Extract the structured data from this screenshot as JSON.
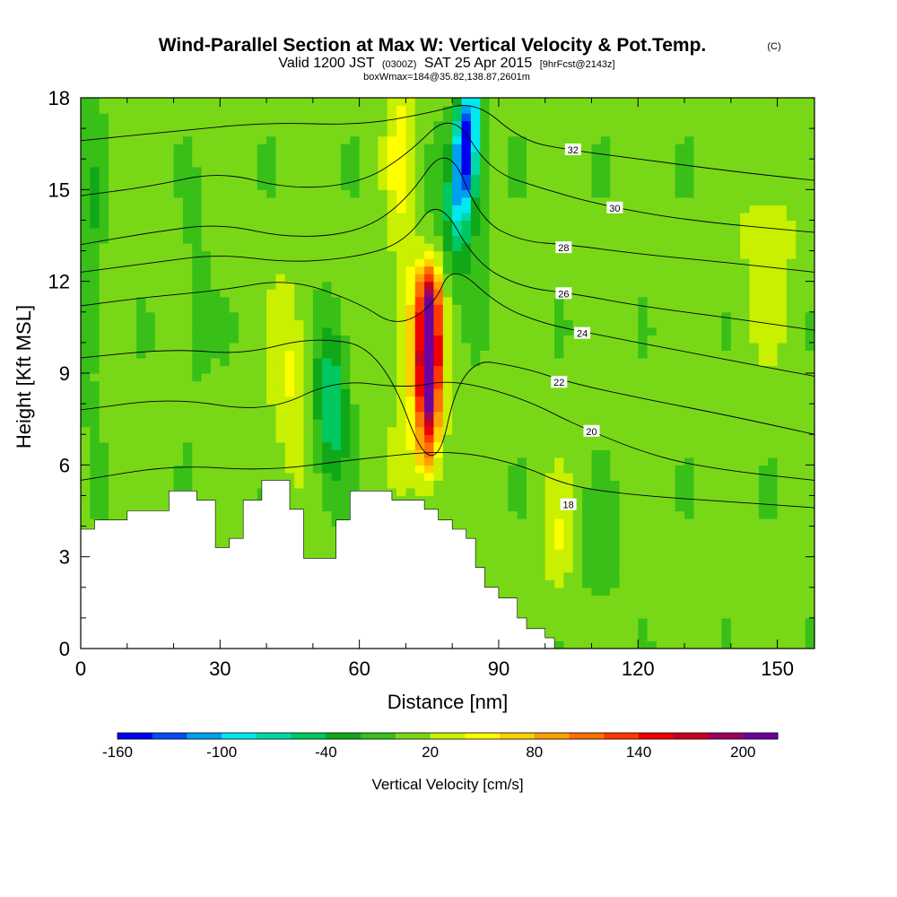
{
  "header": {
    "title": "Wind-Parallel Section at Max W: Vertical Velocity & Pot.Temp.",
    "copyright": "(C)",
    "valid_prefix": "Valid 1200 JST",
    "valid_utc": "(0300Z)",
    "valid_date": "SAT 25 Apr 2015",
    "forecast": "[9hrFcst@2143z]",
    "box_info": "boxWmax=184@35.82,138.87,2601m"
  },
  "chart_data": {
    "type": "heatmap",
    "title": "Wind-Parallel Section at Max W: Vertical Velocity & Pot.Temp.",
    "xlabel": "Distance [nm]",
    "ylabel": "Height [Kft MSL]",
    "xlim": [
      0,
      158
    ],
    "ylim": [
      0,
      18
    ],
    "x_ticks": [
      0,
      30,
      60,
      90,
      120,
      150
    ],
    "y_ticks": [
      0,
      3,
      6,
      9,
      12,
      15,
      18
    ],
    "x_tick_labels": [
      "0",
      "30",
      "60",
      "90",
      "120",
      "150"
    ],
    "y_tick_labels": [
      "0",
      "3",
      "6",
      "9",
      "12",
      "15",
      "18"
    ],
    "colorbar": {
      "title": "Vertical Velocity [cm/s]",
      "labels": [
        "-160",
        "-100",
        "-40",
        "20",
        "80",
        "140",
        "200"
      ],
      "label_values": [
        -160,
        -100,
        -40,
        20,
        80,
        140,
        200
      ],
      "bounds": [
        -160,
        -140,
        -120,
        -100,
        -80,
        -60,
        -40,
        -20,
        0,
        20,
        40,
        60,
        80,
        100,
        120,
        140,
        160,
        180,
        200,
        220
      ],
      "colors": [
        "#0000f0",
        "#0050f0",
        "#00a0f0",
        "#00e8f0",
        "#00d8a8",
        "#00c860",
        "#10a818",
        "#38c018",
        "#78d818",
        "#c8f000",
        "#ffff00",
        "#ffd000",
        "#ffa000",
        "#ff7000",
        "#ff3800",
        "#f00000",
        "#c80020",
        "#a00060",
        "#6c00a0"
      ]
    },
    "terrain_kft": [
      [
        0,
        3.9
      ],
      [
        3,
        3.9
      ],
      [
        3,
        4.2
      ],
      [
        10,
        4.2
      ],
      [
        10,
        4.5
      ],
      [
        19,
        4.5
      ],
      [
        19,
        5.15
      ],
      [
        25,
        5.15
      ],
      [
        25,
        4.85
      ],
      [
        29,
        4.85
      ],
      [
        29,
        3.3
      ],
      [
        32,
        3.3
      ],
      [
        32,
        3.6
      ],
      [
        35,
        3.6
      ],
      [
        35,
        4.85
      ],
      [
        39,
        4.85
      ],
      [
        39,
        5.5
      ],
      [
        45,
        5.5
      ],
      [
        45,
        4.55
      ],
      [
        48,
        4.55
      ],
      [
        48,
        2.95
      ],
      [
        55,
        2.95
      ],
      [
        55,
        4.2
      ],
      [
        58,
        4.2
      ],
      [
        58,
        5.15
      ],
      [
        67,
        5.15
      ],
      [
        67,
        4.85
      ],
      [
        74,
        4.85
      ],
      [
        74,
        4.55
      ],
      [
        77,
        4.55
      ],
      [
        77,
        4.2
      ],
      [
        80,
        4.2
      ],
      [
        80,
        3.9
      ],
      [
        83,
        3.9
      ],
      [
        83,
        3.6
      ],
      [
        85,
        3.6
      ],
      [
        85,
        2.65
      ],
      [
        87,
        2.65
      ],
      [
        87,
        2.0
      ],
      [
        90,
        2.0
      ],
      [
        90,
        1.65
      ],
      [
        94,
        1.65
      ],
      [
        94,
        1.0
      ],
      [
        96,
        1.0
      ],
      [
        96,
        0.65
      ],
      [
        100,
        0.65
      ],
      [
        100,
        0.35
      ],
      [
        102,
        0.35
      ],
      [
        102,
        0
      ],
      [
        158,
        0
      ]
    ],
    "theta_contours": [
      {
        "label": "18",
        "points": [
          [
            0,
            5.5
          ],
          [
            20,
            6.0
          ],
          [
            40,
            5.8
          ],
          [
            60,
            6.2
          ],
          [
            80,
            6.5
          ],
          [
            95,
            6.0
          ],
          [
            105,
            5.3
          ],
          [
            120,
            5.0
          ],
          [
            140,
            4.8
          ],
          [
            158,
            4.6
          ]
        ],
        "label_at": [
          105,
          4.7
        ]
      },
      {
        "label": "20",
        "points": [
          [
            0,
            7.8
          ],
          [
            20,
            8.2
          ],
          [
            40,
            7.7
          ],
          [
            55,
            8.8
          ],
          [
            70,
            8.5
          ],
          [
            80,
            8.8
          ],
          [
            95,
            8.2
          ],
          [
            108,
            7.2
          ],
          [
            125,
            6.2
          ],
          [
            140,
            5.8
          ],
          [
            158,
            5.5
          ]
        ],
        "label_at": [
          110,
          7.1
        ]
      },
      {
        "label": "22",
        "points": [
          [
            0,
            9.5
          ],
          [
            20,
            9.8
          ],
          [
            35,
            9.6
          ],
          [
            50,
            10.2
          ],
          [
            65,
            9.8
          ],
          [
            76,
            5.2
          ],
          [
            82,
            9.5
          ],
          [
            95,
            9.2
          ],
          [
            105,
            8.7
          ],
          [
            120,
            8.2
          ],
          [
            140,
            7.6
          ],
          [
            158,
            7.0
          ]
        ],
        "label_at": [
          103,
          8.7
        ]
      },
      {
        "label": "24",
        "points": [
          [
            0,
            11.2
          ],
          [
            15,
            11.5
          ],
          [
            30,
            11.7
          ],
          [
            45,
            12.1
          ],
          [
            60,
            11.3
          ],
          [
            68,
            10.5
          ],
          [
            76,
            11.2
          ],
          [
            80,
            12.6
          ],
          [
            90,
            11.2
          ],
          [
            100,
            10.6
          ],
          [
            110,
            10.3
          ],
          [
            130,
            9.7
          ],
          [
            158,
            8.9
          ]
        ],
        "label_at": [
          108,
          10.3
        ]
      },
      {
        "label": "26",
        "points": [
          [
            0,
            12.3
          ],
          [
            15,
            12.6
          ],
          [
            30,
            12.9
          ],
          [
            45,
            12.6
          ],
          [
            60,
            12.8
          ],
          [
            70,
            13.3
          ],
          [
            77,
            14.8
          ],
          [
            85,
            12.6
          ],
          [
            95,
            11.8
          ],
          [
            106,
            11.6
          ],
          [
            120,
            11.2
          ],
          [
            140,
            10.8
          ],
          [
            158,
            10.4
          ]
        ],
        "label_at": [
          104,
          11.6
        ]
      },
      {
        "label": "28",
        "points": [
          [
            0,
            13.2
          ],
          [
            15,
            13.6
          ],
          [
            30,
            13.9
          ],
          [
            45,
            13.4
          ],
          [
            60,
            13.6
          ],
          [
            70,
            14.6
          ],
          [
            79,
            16.6
          ],
          [
            86,
            14.0
          ],
          [
            95,
            13.3
          ],
          [
            105,
            13.2
          ],
          [
            120,
            12.9
          ],
          [
            140,
            12.6
          ],
          [
            158,
            12.3
          ]
        ],
        "label_at": [
          104,
          13.1
        ]
      },
      {
        "label": "30",
        "points": [
          [
            0,
            14.8
          ],
          [
            15,
            15.1
          ],
          [
            30,
            15.6
          ],
          [
            45,
            15.0
          ],
          [
            60,
            15.2
          ],
          [
            70,
            16.1
          ],
          [
            80,
            17.6
          ],
          [
            88,
            15.6
          ],
          [
            100,
            15.0
          ],
          [
            112,
            14.5
          ],
          [
            130,
            14.0
          ],
          [
            158,
            13.6
          ]
        ],
        "label_at": [
          115,
          14.4
        ]
      },
      {
        "label": "32",
        "points": [
          [
            0,
            16.6
          ],
          [
            20,
            16.9
          ],
          [
            40,
            17.2
          ],
          [
            60,
            17.1
          ],
          [
            75,
            17.5
          ],
          [
            85,
            17.9
          ],
          [
            95,
            16.6
          ],
          [
            105,
            16.3
          ],
          [
            120,
            16.0
          ],
          [
            140,
            15.6
          ],
          [
            158,
            15.3
          ]
        ],
        "label_at": [
          106,
          16.3
        ]
      }
    ]
  }
}
